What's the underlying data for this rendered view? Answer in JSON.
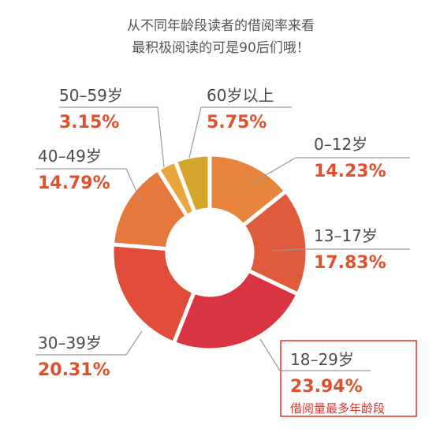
{
  "chart_data": {
    "type": "donut",
    "title": [
      "从不同年龄段读者的借阅率来看",
      "最积极阅读的可是90后们哦！"
    ],
    "categories": [
      "0–12岁",
      "13–17岁",
      "18–29岁",
      "30–39岁",
      "40–49岁",
      "50–59岁",
      "60岁以上"
    ],
    "values": [
      14.23,
      17.83,
      23.94,
      20.31,
      14.79,
      3.15,
      5.75
    ],
    "value_labels": [
      "14.23%",
      "17.83%",
      "23.94%",
      "20.31%",
      "14.79%",
      "3.15%",
      "5.75%"
    ],
    "colors": [
      "#e8853c",
      "#e05a3c",
      "#d93442",
      "#e04b3a",
      "#e5783c",
      "#e9a63c",
      "#d6a52c"
    ],
    "annotation": "借阅量最多年龄段"
  }
}
